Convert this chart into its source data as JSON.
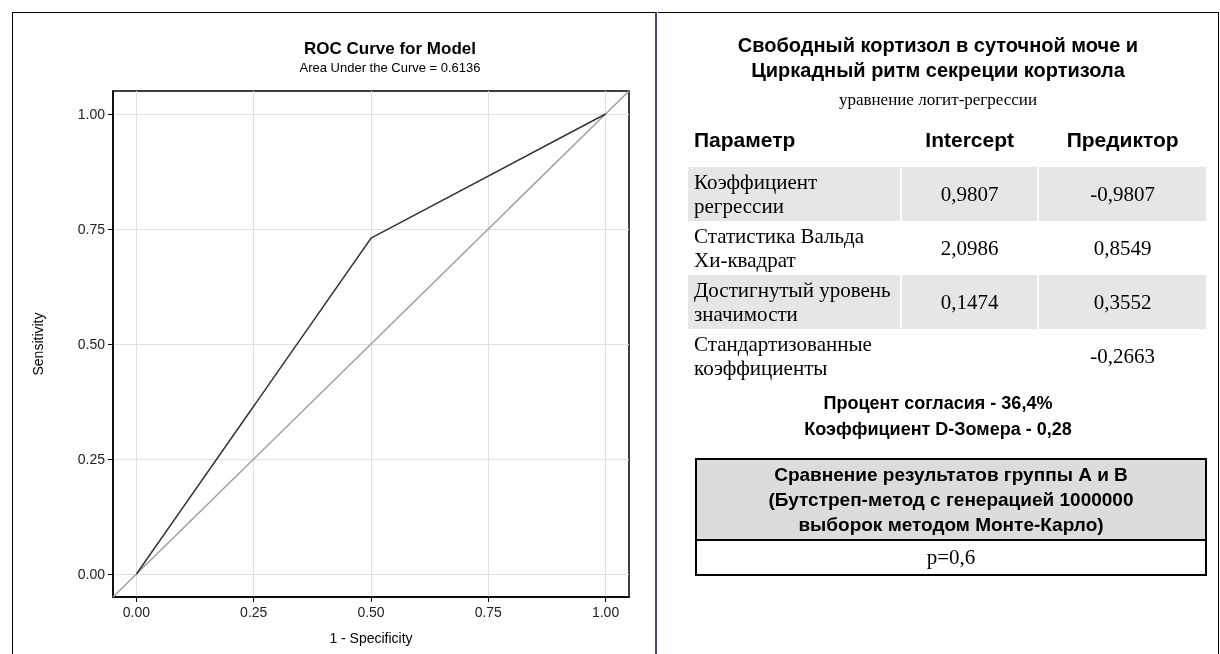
{
  "chart_data": [
    {
      "type": "line",
      "title": "ROC Curve for Model",
      "subtitle": "Area Under the Curve = 0.6136",
      "xlabel": "1 - Specificity",
      "ylabel": "Sensitivity",
      "series": [
        {
          "color": "#333333",
          "x": [
            0,
            0.5,
            1
          ],
          "values": [
            0,
            0.73,
            1
          ]
        },
        {
          "color": "#a0a0a0",
          "x": [
            -0.05,
            1.05
          ],
          "values": [
            -0.05,
            1.05
          ]
        }
      ],
      "xlim": [
        -0.05,
        1.05
      ],
      "ylim": [
        -0.05,
        1.05
      ],
      "xticks": [
        {
          "value": 0,
          "label": "0.00"
        },
        {
          "value": 0.25,
          "label": "0.25"
        },
        {
          "value": 0.5,
          "label": "0.50"
        },
        {
          "value": 0.75,
          "label": "0.75"
        },
        {
          "value": 1,
          "label": "1.00"
        }
      ],
      "yticks": [
        {
          "value": 0,
          "label": "0.00"
        },
        {
          "value": 0.25,
          "label": "0.25"
        },
        {
          "value": 0.5,
          "label": "0.50"
        },
        {
          "value": 0.75,
          "label": "0.75"
        },
        {
          "value": 1,
          "label": "1.00"
        }
      ],
      "grid": true,
      "marker": "none",
      "line_style": "solid"
    },
    {
      "type": "other",
      "title": "Свободный кортизол в суточной моче и Циркадный ритм секреции кортизола",
      "subtitle": "уравнение логит-регрессии",
      "annotations": [
        "Параметр",
        "Intercept",
        "Предиктор",
        "Коэффициент регрессии",
        "0,9807",
        "-0,9807",
        "Статистика Вальда Хи-квадрат",
        "2,0986",
        "0,8549",
        "Достигнутый уровень значимости",
        "0,1474",
        "0,3552",
        "Стандартизованные коэффициенты",
        null,
        "-0,2663",
        "Процент согласия - 36,4%",
        "Коэффициент D-Зомера - 0,28",
        "Сравнение результатов группы А и В (Бутстреп-метод с генерацией 1000000 выборок методом Монте-Карло)",
        "p=0,6"
      ]
    }
  ]
}
